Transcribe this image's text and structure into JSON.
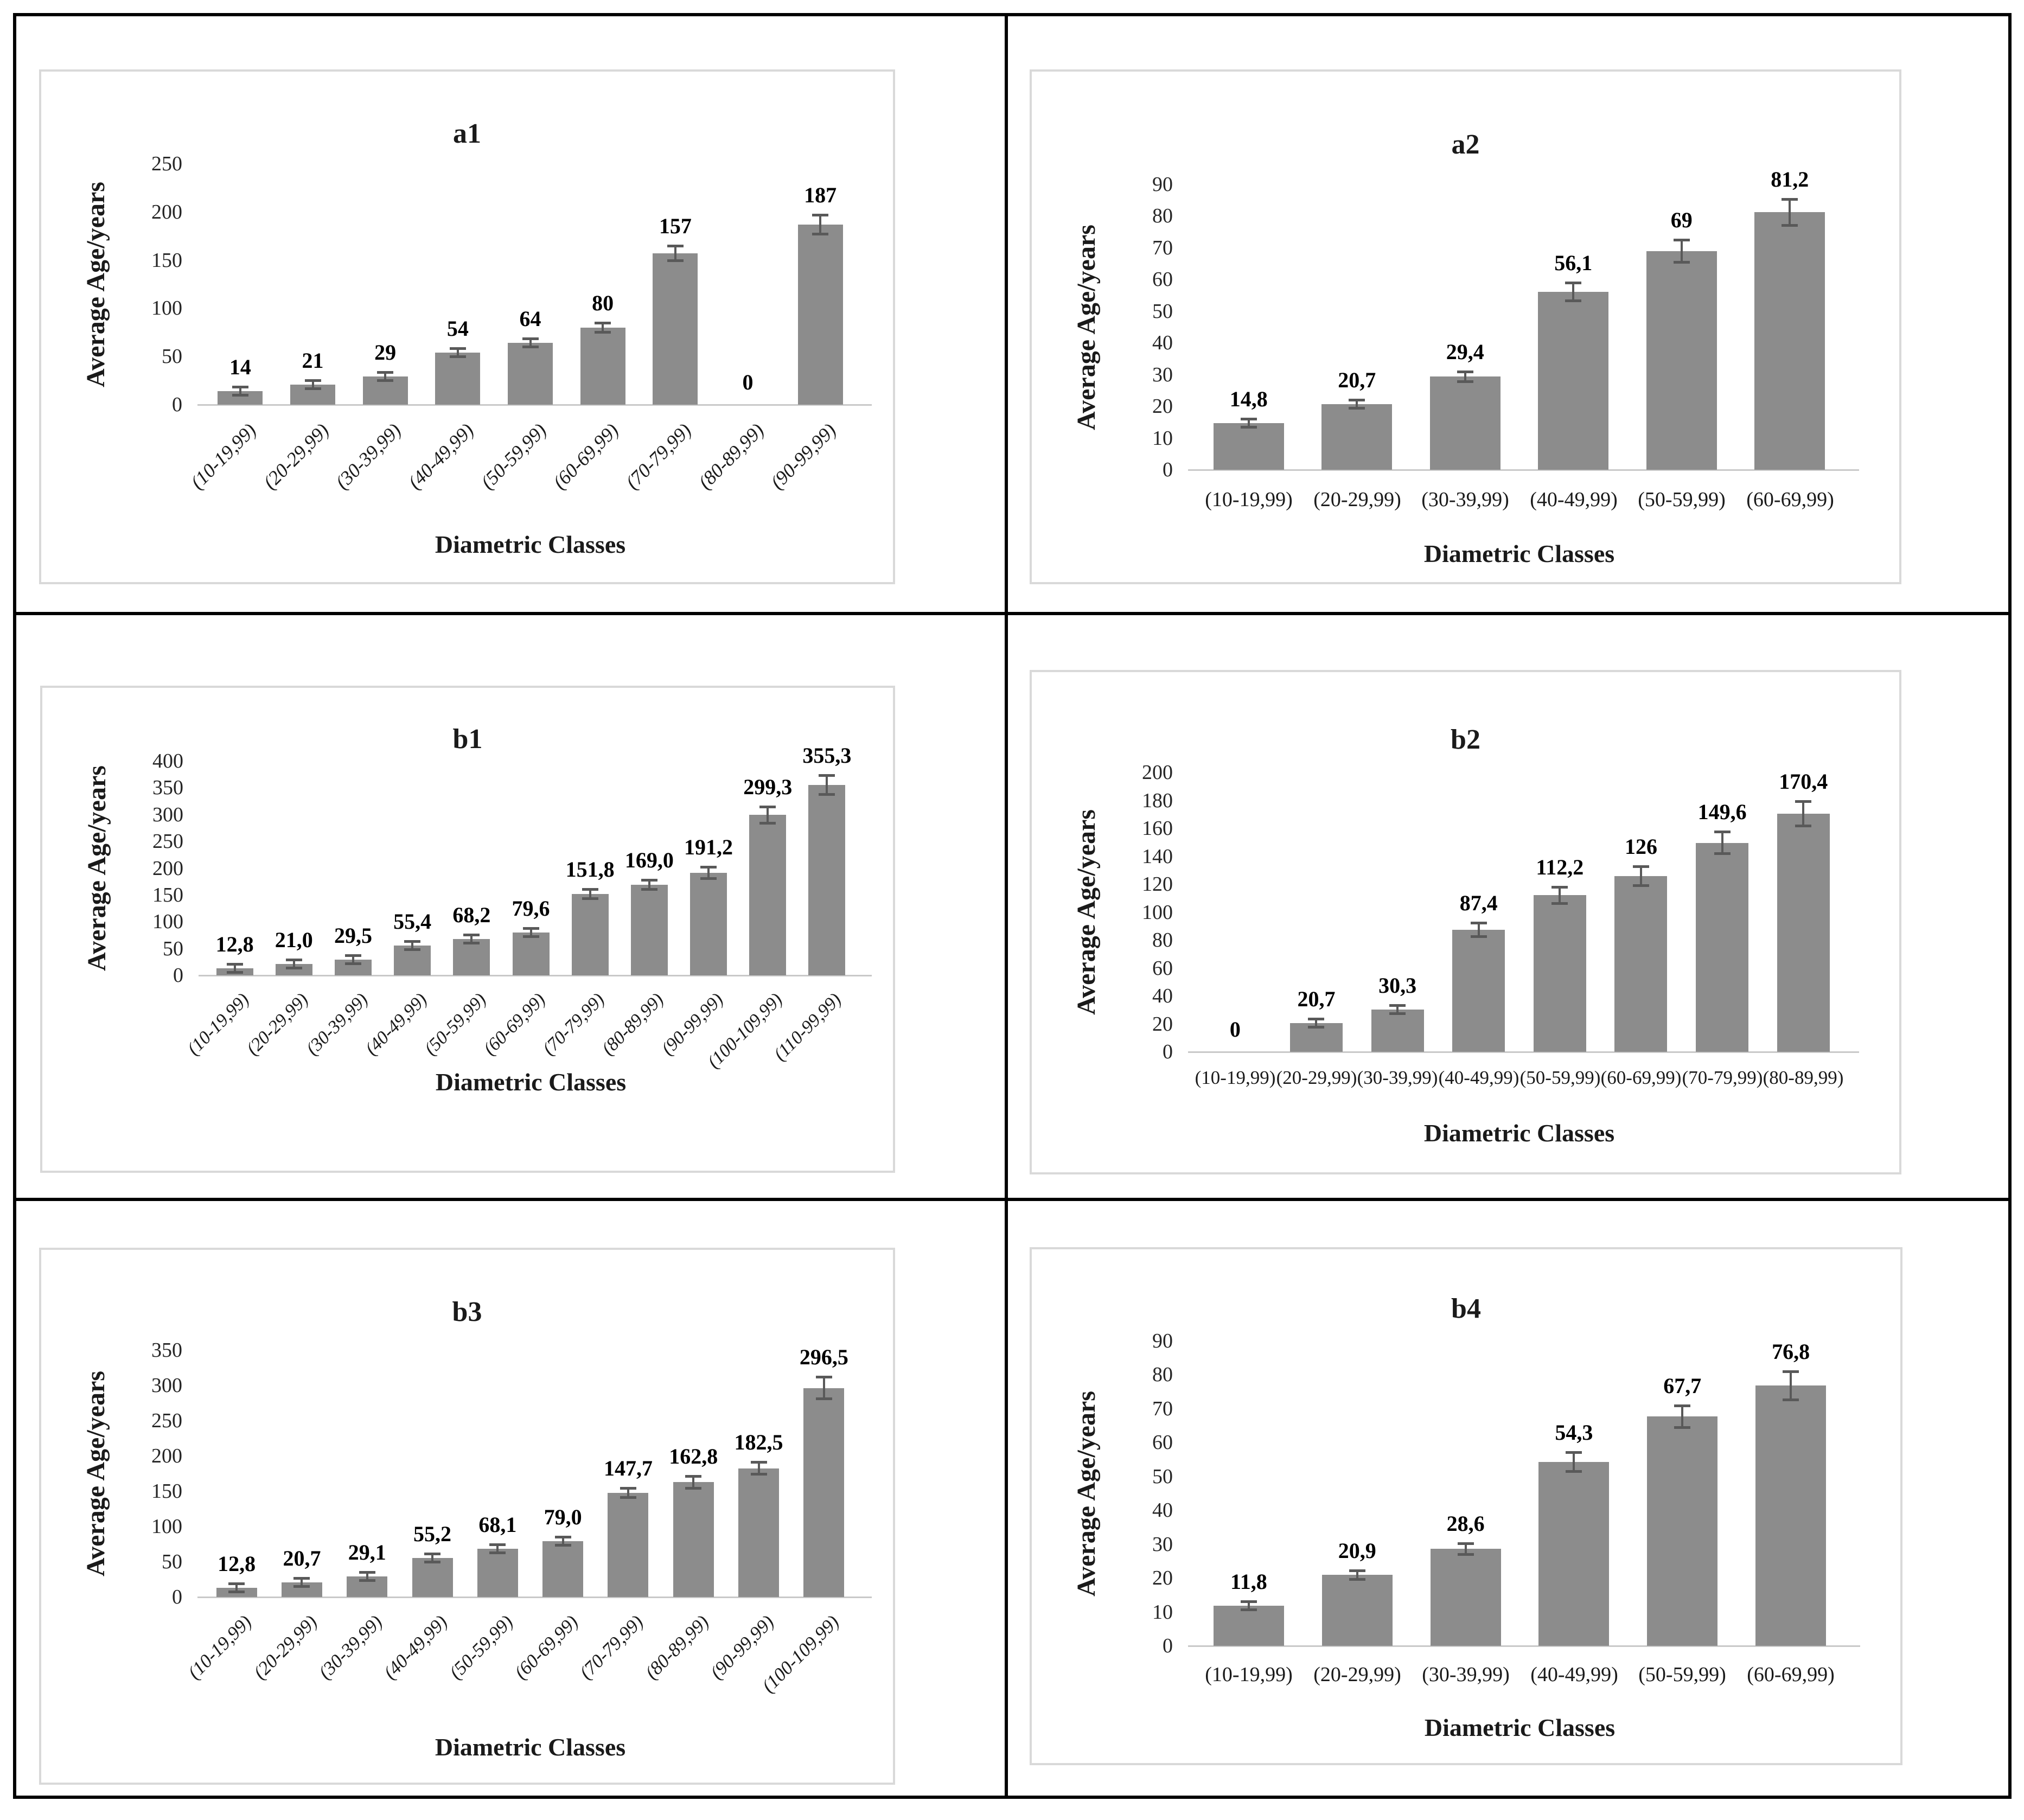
{
  "figure": {
    "ylabel": "Average Age/years",
    "xlabel": "Diametric Classes"
  },
  "style": {
    "bar_color": "#8c8c8c",
    "error_bar_color": "#595959",
    "axis_line_color": "#c9c9c9",
    "panel_border_color": "#d9d9d9",
    "frame_border_color": "#000000",
    "text_color": "#1a1a1a",
    "background": "#ffffff"
  },
  "chart_data": [
    {
      "id": "a1",
      "type": "bar",
      "title": "a1",
      "ylabel": "Average Age/years",
      "xlabel": "Diametric Classes",
      "categories": [
        "(10-19,99)",
        "(20-29,99)",
        "(30-39,99)",
        "(40-49,99)",
        "(50-59,99)",
        "(60-69,99)",
        "(70-79,99)",
        "(80-89,99)",
        "(90-99,99)"
      ],
      "values": [
        14,
        21,
        29,
        54,
        64,
        80,
        157,
        0,
        187
      ],
      "value_labels": [
        "14",
        "21",
        "29",
        "54",
        "64",
        "80",
        "157",
        "0",
        "187"
      ],
      "errors": [
        2,
        2,
        2,
        4,
        4,
        5,
        8,
        0,
        10
      ],
      "ylim": [
        0,
        250
      ],
      "ytick_step": 50,
      "yticks": [
        0,
        50,
        100,
        150,
        200,
        250
      ],
      "rotated_xticks": true,
      "grid": false,
      "legend": "none"
    },
    {
      "id": "a2",
      "type": "bar",
      "title": "a2",
      "ylabel": "Average Age/years",
      "xlabel": "Diametric Classes",
      "categories": [
        "(10-19,99)",
        "(20-29,99)",
        "(30-39,99)",
        "(40-49,99)",
        "(50-59,99)",
        "(60-69,99)"
      ],
      "values": [
        14.8,
        20.7,
        29.4,
        56.1,
        69,
        81.2
      ],
      "value_labels": [
        "14,8",
        "20,7",
        "29,4",
        "56,1",
        "69",
        "81,2"
      ],
      "errors": [
        0.8,
        1.2,
        1.6,
        2.9,
        3.6,
        4.2
      ],
      "ylim": [
        0,
        90
      ],
      "ytick_step": 10,
      "yticks": [
        0,
        10,
        20,
        30,
        40,
        50,
        60,
        70,
        80,
        90
      ],
      "rotated_xticks": false,
      "grid": false,
      "legend": "none"
    },
    {
      "id": "b1",
      "type": "bar",
      "title": "b1",
      "ylabel": "Average Age/years",
      "xlabel": "Diametric Classes",
      "categories": [
        "(10-19,99)",
        "(20-29,99)",
        "(30-39,99)",
        "(40-49,99)",
        "(50-59,99)",
        "(60-69,99)",
        "(70-79,99)",
        "(80-89,99)",
        "(90-99,99)",
        "(100-109,99)",
        "(110-99,99)"
      ],
      "values": [
        12.8,
        21.0,
        29.5,
        55.4,
        68.2,
        79.6,
        151.8,
        169.0,
        191.2,
        299.3,
        355.3
      ],
      "value_labels": [
        "12,8",
        "21,0",
        "29,5",
        "55,4",
        "68,2",
        "79,6",
        "151,8",
        "169,0",
        "191,2",
        "299,3",
        "355,3"
      ],
      "errors": [
        1.5,
        2,
        2.5,
        4,
        4.5,
        5,
        9,
        9,
        11,
        16,
        18
      ],
      "ylim": [
        0,
        400
      ],
      "ytick_step": 50,
      "yticks": [
        0,
        50,
        100,
        150,
        200,
        250,
        300,
        350,
        400
      ],
      "rotated_xticks": true,
      "grid": false,
      "legend": "none"
    },
    {
      "id": "b2",
      "type": "bar",
      "title": "b2",
      "ylabel": "Average Age/years",
      "xlabel": "Diametric Classes",
      "categories": [
        "(10-19,99)",
        "(20-29,99)",
        "(30-39,99)",
        "(40-49,99)",
        "(50-59,99)",
        "(60-69,99)",
        "(70-79,99)",
        "(80-89,99)"
      ],
      "values": [
        0,
        20.7,
        30.3,
        87.4,
        112.2,
        126,
        149.6,
        170.4
      ],
      "value_labels": [
        "0",
        "20,7",
        "30,3",
        "87,4",
        "112,2",
        "126",
        "149,6",
        "170,4"
      ],
      "errors": [
        0,
        1.8,
        2,
        5,
        6,
        7,
        8,
        9
      ],
      "ylim": [
        0,
        200
      ],
      "ytick_step": 20,
      "yticks": [
        0,
        20,
        40,
        60,
        80,
        100,
        120,
        140,
        160,
        180,
        200
      ],
      "rotated_xticks": false,
      "grid": false,
      "legend": "none"
    },
    {
      "id": "b3",
      "type": "bar",
      "title": "b3",
      "ylabel": "Average Age/years",
      "xlabel": "Diametric Classes",
      "categories": [
        "(10-19,99)",
        "(20-29,99)",
        "(30-39,99)",
        "(40-49,99)",
        "(50-59,99)",
        "(60-69,99)",
        "(70-79,99)",
        "(80-89,99)",
        "(90-99,99)",
        "(100-109,99)"
      ],
      "values": [
        12.8,
        20.7,
        29.1,
        55.2,
        68.1,
        79.0,
        147.7,
        162.8,
        182.5,
        296.5
      ],
      "value_labels": [
        "12,8",
        "20,7",
        "29,1",
        "55,2",
        "68,1",
        "79,0",
        "147,7",
        "162,8",
        "182,5",
        "296,5"
      ],
      "errors": [
        1.8,
        1.5,
        2.5,
        3.5,
        4,
        4.5,
        7,
        9,
        9,
        16
      ],
      "ylim": [
        0,
        350
      ],
      "ytick_step": 50,
      "yticks": [
        0,
        50,
        100,
        150,
        200,
        250,
        300,
        350
      ],
      "rotated_xticks": true,
      "grid": false,
      "legend": "none"
    },
    {
      "id": "b4",
      "type": "bar",
      "title": "b4",
      "ylabel": "Average Age/years",
      "xlabel": "Diametric Classes",
      "categories": [
        "(10-19,99)",
        "(20-29,99)",
        "(30-39,99)",
        "(40-49,99)",
        "(50-59,99)",
        "(60-69,99)"
      ],
      "values": [
        11.8,
        20.9,
        28.6,
        54.3,
        67.7,
        76.8
      ],
      "value_labels": [
        "11,8",
        "20,9",
        "28,6",
        "54,3",
        "67,7",
        "76,8"
      ],
      "errors": [
        0.9,
        1.3,
        1.7,
        2.9,
        3.3,
        4.2
      ],
      "ylim": [
        0,
        90
      ],
      "ytick_step": 10,
      "yticks": [
        0,
        10,
        20,
        30,
        40,
        50,
        60,
        70,
        80,
        90
      ],
      "rotated_xticks": false,
      "grid": false,
      "legend": "none"
    }
  ]
}
